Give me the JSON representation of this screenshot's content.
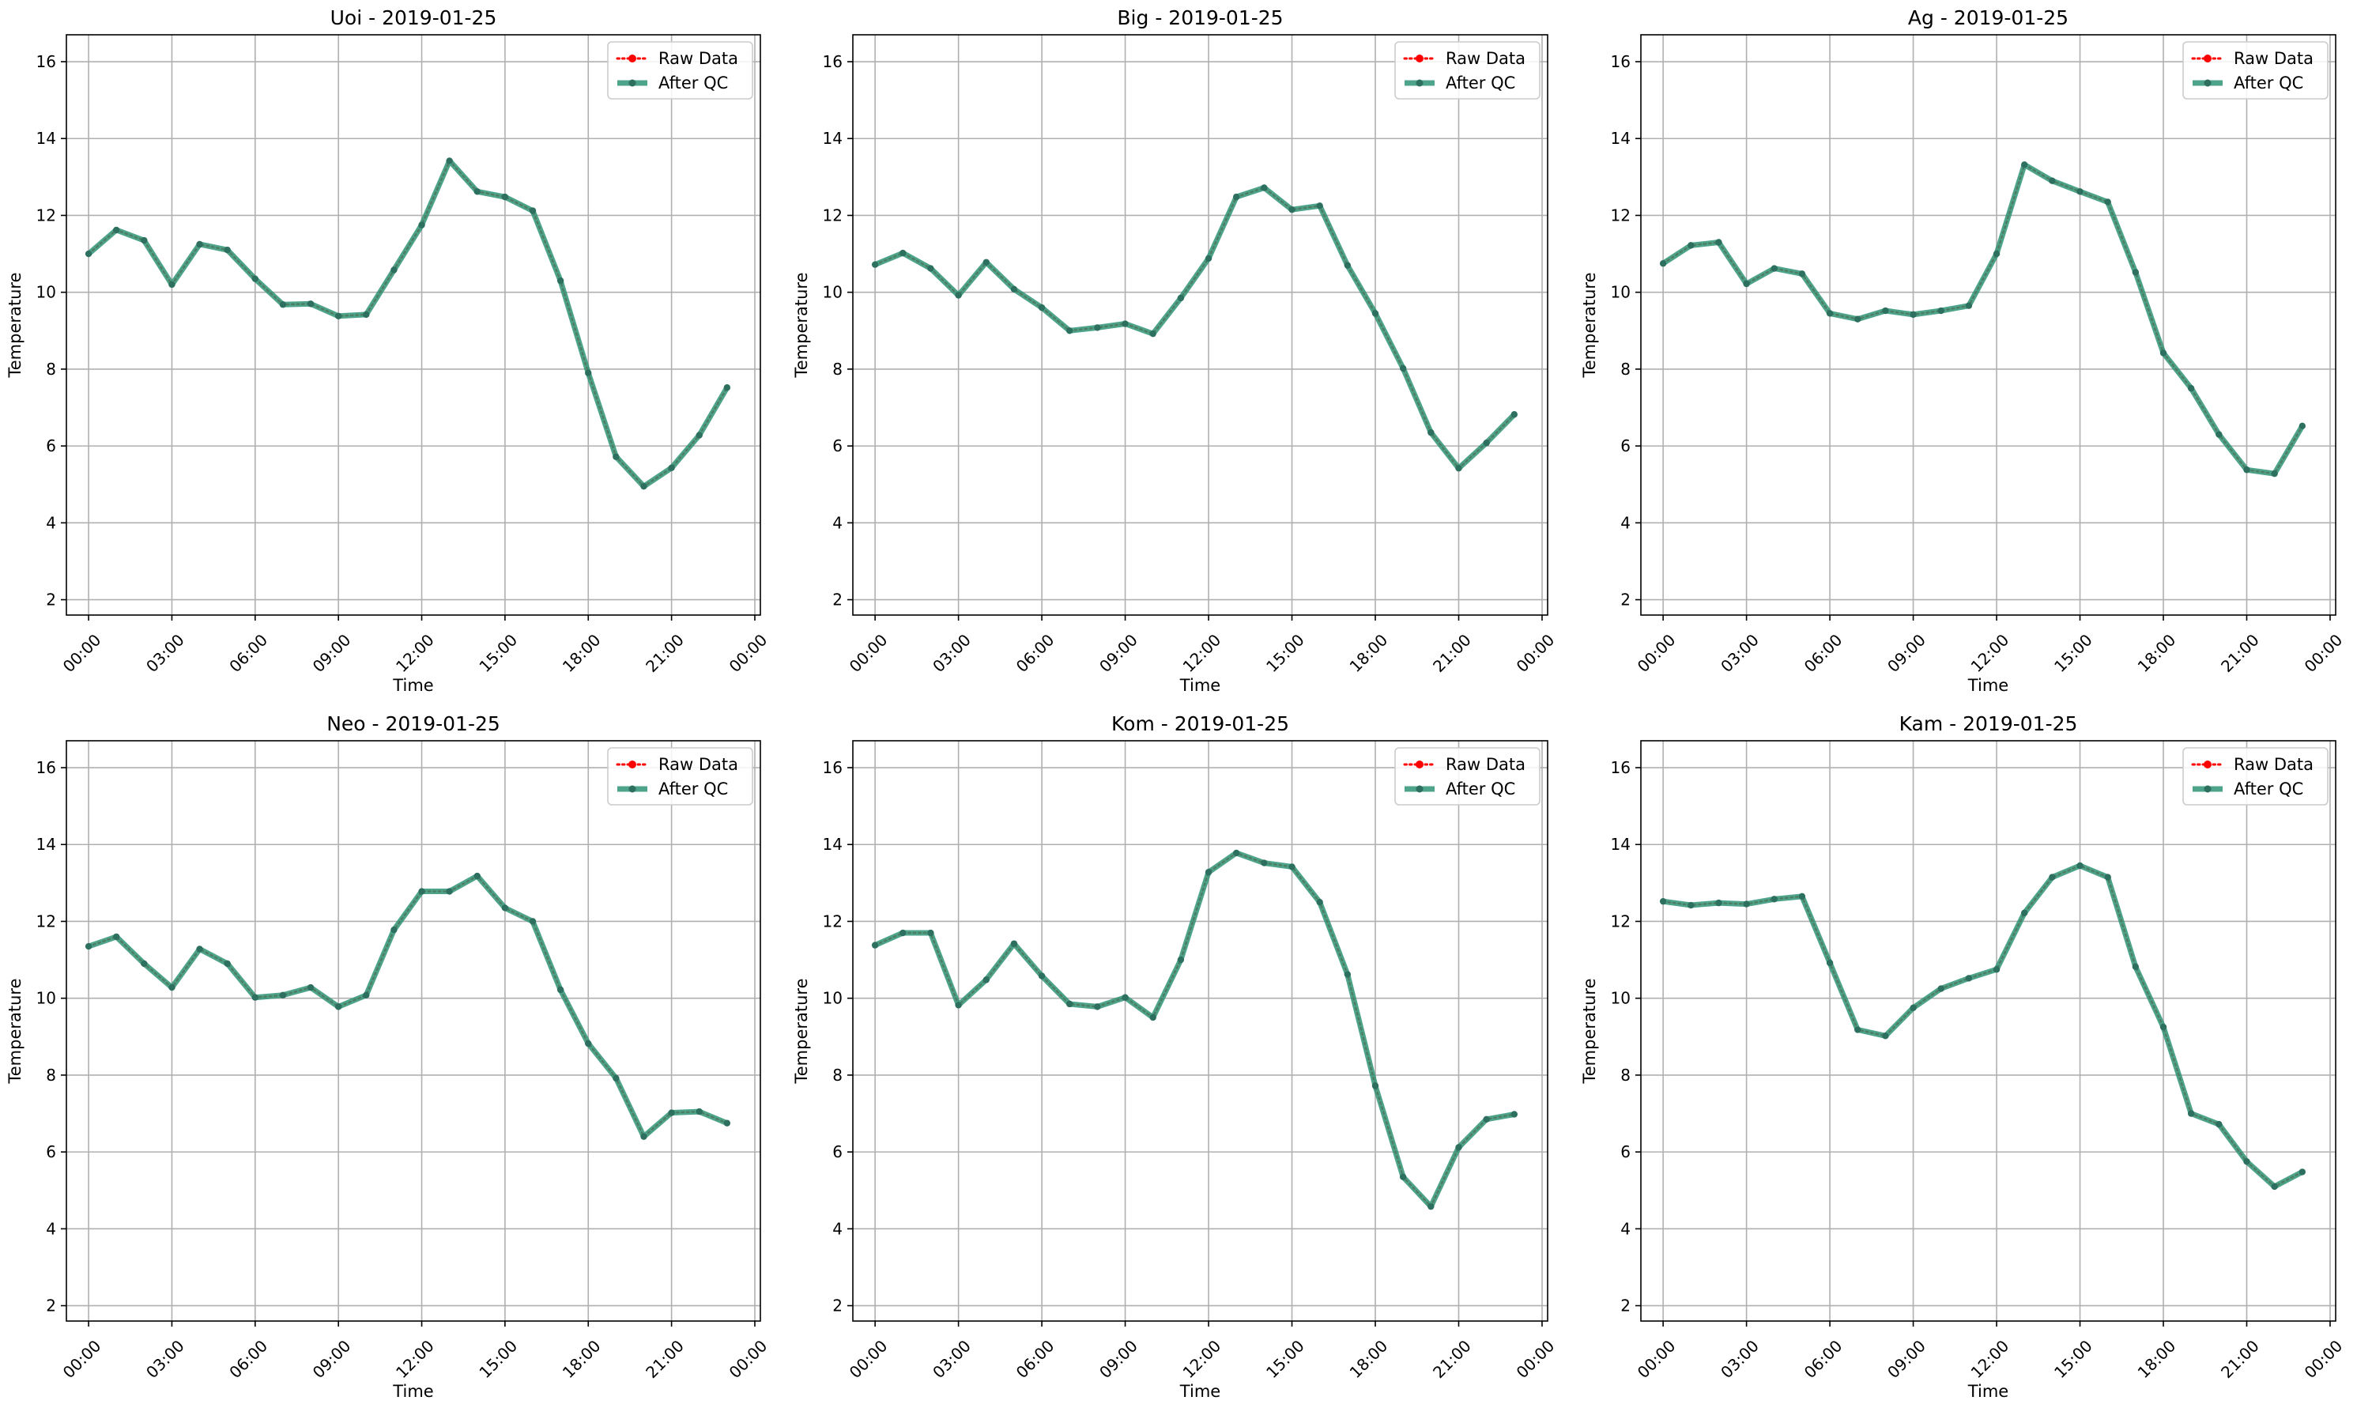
{
  "colors": {
    "raw": "#ff0000",
    "qc": "#2e9476",
    "qc_marker": "#2d7060",
    "grid": "#b0b0b0",
    "axes": "#000000",
    "legend_border": "#cccccc"
  },
  "legend": {
    "raw_label": "Raw Data",
    "qc_label": "After QC"
  },
  "chart_data": [
    {
      "type": "line",
      "title": "Uoi - 2019-01-25",
      "xlabel": "Time",
      "ylabel": "Temperature",
      "x_tick_labels": [
        "00:00",
        "03:00",
        "06:00",
        "09:00",
        "12:00",
        "15:00",
        "18:00",
        "21:00",
        "00:00"
      ],
      "y_ticks": [
        2,
        4,
        6,
        8,
        10,
        12,
        14,
        16
      ],
      "ylim": [
        1.6,
        16.7
      ],
      "xlim_hours": [
        -0.8,
        24.2
      ],
      "grid": true,
      "legend_position": "top-right",
      "x_hours": [
        0,
        1,
        2,
        3,
        4,
        5,
        6,
        7,
        8,
        9,
        10,
        11,
        12,
        13,
        14,
        15,
        16,
        17,
        18,
        19,
        20,
        21,
        22,
        23
      ],
      "series": [
        {
          "name": "Raw Data",
          "values": [
            11.0,
            11.62,
            11.35,
            10.2,
            11.25,
            11.1,
            10.35,
            9.68,
            9.7,
            9.38,
            9.42,
            10.58,
            11.75,
            13.42,
            12.62,
            12.48,
            12.12,
            10.3,
            7.9,
            5.72,
            4.95,
            5.43,
            6.28,
            7.52
          ]
        },
        {
          "name": "After QC",
          "values": [
            11.0,
            11.62,
            11.35,
            10.2,
            11.25,
            11.1,
            10.35,
            9.68,
            9.7,
            9.38,
            9.42,
            10.58,
            11.75,
            13.42,
            12.62,
            12.48,
            12.12,
            10.3,
            7.9,
            5.72,
            4.95,
            5.43,
            6.28,
            7.52
          ]
        }
      ]
    },
    {
      "type": "line",
      "title": "Big - 2019-01-25",
      "xlabel": "Time",
      "ylabel": "Temperature",
      "x_tick_labels": [
        "00:00",
        "03:00",
        "06:00",
        "09:00",
        "12:00",
        "15:00",
        "18:00",
        "21:00",
        "00:00"
      ],
      "y_ticks": [
        2,
        4,
        6,
        8,
        10,
        12,
        14,
        16
      ],
      "ylim": [
        1.6,
        16.7
      ],
      "xlim_hours": [
        -0.8,
        24.2
      ],
      "grid": true,
      "legend_position": "top-right",
      "x_hours": [
        0,
        1,
        2,
        3,
        4,
        5,
        6,
        7,
        8,
        9,
        10,
        11,
        12,
        13,
        14,
        15,
        16,
        17,
        18,
        19,
        20,
        21,
        22,
        23
      ],
      "series": [
        {
          "name": "Raw Data",
          "values": [
            10.72,
            11.02,
            10.62,
            9.92,
            10.78,
            10.08,
            9.6,
            9.0,
            9.08,
            9.18,
            8.92,
            9.85,
            10.88,
            12.48,
            12.72,
            12.15,
            12.25,
            10.7,
            9.45,
            8.02,
            6.35,
            5.42,
            6.08,
            6.82
          ]
        },
        {
          "name": "After QC",
          "values": [
            10.72,
            11.02,
            10.62,
            9.92,
            10.78,
            10.08,
            9.6,
            9.0,
            9.08,
            9.18,
            8.92,
            9.85,
            10.88,
            12.48,
            12.72,
            12.15,
            12.25,
            10.7,
            9.45,
            8.02,
            6.35,
            5.42,
            6.08,
            6.82
          ]
        }
      ]
    },
    {
      "type": "line",
      "title": "Ag - 2019-01-25",
      "xlabel": "Time",
      "ylabel": "Temperature",
      "x_tick_labels": [
        "00:00",
        "03:00",
        "06:00",
        "09:00",
        "12:00",
        "15:00",
        "18:00",
        "21:00",
        "00:00"
      ],
      "y_ticks": [
        2,
        4,
        6,
        8,
        10,
        12,
        14,
        16
      ],
      "ylim": [
        1.6,
        16.7
      ],
      "xlim_hours": [
        -0.8,
        24.2
      ],
      "grid": true,
      "legend_position": "top-right",
      "x_hours": [
        0,
        1,
        2,
        3,
        4,
        5,
        6,
        7,
        8,
        9,
        10,
        11,
        12,
        13,
        14,
        15,
        16,
        17,
        18,
        19,
        20,
        21,
        22,
        23
      ],
      "series": [
        {
          "name": "Raw Data",
          "values": [
            10.75,
            11.22,
            11.3,
            10.22,
            10.62,
            10.48,
            9.45,
            9.3,
            9.52,
            9.42,
            9.52,
            9.65,
            11.0,
            13.32,
            12.9,
            12.62,
            12.35,
            10.52,
            8.42,
            7.5,
            6.3,
            5.38,
            5.28,
            6.52
          ]
        },
        {
          "name": "After QC",
          "values": [
            10.75,
            11.22,
            11.3,
            10.22,
            10.62,
            10.48,
            9.45,
            9.3,
            9.52,
            9.42,
            9.52,
            9.65,
            11.0,
            13.32,
            12.9,
            12.62,
            12.35,
            10.52,
            8.42,
            7.5,
            6.3,
            5.38,
            5.28,
            6.52
          ]
        }
      ]
    },
    {
      "type": "line",
      "title": "Neo - 2019-01-25",
      "xlabel": "Time",
      "ylabel": "Temperature",
      "x_tick_labels": [
        "00:00",
        "03:00",
        "06:00",
        "09:00",
        "12:00",
        "15:00",
        "18:00",
        "21:00",
        "00:00"
      ],
      "y_ticks": [
        2,
        4,
        6,
        8,
        10,
        12,
        14,
        16
      ],
      "ylim": [
        1.6,
        16.7
      ],
      "xlim_hours": [
        -0.8,
        24.2
      ],
      "grid": true,
      "legend_position": "top-right",
      "x_hours": [
        0,
        1,
        2,
        3,
        4,
        5,
        6,
        7,
        8,
        9,
        10,
        11,
        12,
        13,
        14,
        15,
        16,
        17,
        18,
        19,
        20,
        21,
        22,
        23
      ],
      "series": [
        {
          "name": "Raw Data",
          "values": [
            11.35,
            11.6,
            10.9,
            10.28,
            11.28,
            10.9,
            10.02,
            10.08,
            10.28,
            9.78,
            10.08,
            11.78,
            12.78,
            12.78,
            13.18,
            12.35,
            12.0,
            10.22,
            8.82,
            7.92,
            6.4,
            7.02,
            7.05,
            6.75
          ]
        },
        {
          "name": "After QC",
          "values": [
            11.35,
            11.6,
            10.9,
            10.28,
            11.28,
            10.9,
            10.02,
            10.08,
            10.28,
            9.78,
            10.08,
            11.78,
            12.78,
            12.78,
            13.18,
            12.35,
            12.0,
            10.22,
            8.82,
            7.92,
            6.4,
            7.02,
            7.05,
            6.75
          ]
        }
      ]
    },
    {
      "type": "line",
      "title": "Kom - 2019-01-25",
      "xlabel": "Time",
      "ylabel": "Temperature",
      "x_tick_labels": [
        "00:00",
        "03:00",
        "06:00",
        "09:00",
        "12:00",
        "15:00",
        "18:00",
        "21:00",
        "00:00"
      ],
      "y_ticks": [
        2,
        4,
        6,
        8,
        10,
        12,
        14,
        16
      ],
      "ylim": [
        1.6,
        16.7
      ],
      "xlim_hours": [
        -0.8,
        24.2
      ],
      "grid": true,
      "legend_position": "top-right",
      "x_hours": [
        0,
        1,
        2,
        3,
        4,
        5,
        6,
        7,
        8,
        9,
        10,
        11,
        12,
        13,
        14,
        15,
        16,
        17,
        18,
        19,
        20,
        21,
        22,
        23
      ],
      "series": [
        {
          "name": "Raw Data",
          "values": [
            11.38,
            11.7,
            11.7,
            9.82,
            10.48,
            11.42,
            10.58,
            9.85,
            9.78,
            10.02,
            9.5,
            11.0,
            13.28,
            13.78,
            13.52,
            13.42,
            12.5,
            10.62,
            7.72,
            5.35,
            4.58,
            6.12,
            6.85,
            6.98
          ]
        },
        {
          "name": "After QC",
          "values": [
            11.38,
            11.7,
            11.7,
            9.82,
            10.48,
            11.42,
            10.58,
            9.85,
            9.78,
            10.02,
            9.5,
            11.0,
            13.28,
            13.78,
            13.52,
            13.42,
            12.5,
            10.62,
            7.72,
            5.35,
            4.58,
            6.12,
            6.85,
            6.98
          ]
        }
      ]
    },
    {
      "type": "line",
      "title": "Kam - 2019-01-25",
      "xlabel": "Time",
      "ylabel": "Temperature",
      "x_tick_labels": [
        "00:00",
        "03:00",
        "06:00",
        "09:00",
        "12:00",
        "15:00",
        "18:00",
        "21:00",
        "00:00"
      ],
      "y_ticks": [
        2,
        4,
        6,
        8,
        10,
        12,
        14,
        16
      ],
      "ylim": [
        1.6,
        16.7
      ],
      "xlim_hours": [
        -0.8,
        24.2
      ],
      "grid": true,
      "legend_position": "top-right",
      "x_hours": [
        0,
        1,
        2,
        3,
        4,
        5,
        6,
        7,
        8,
        9,
        10,
        11,
        12,
        13,
        14,
        15,
        16,
        17,
        18,
        19,
        20,
        21,
        22,
        23
      ],
      "series": [
        {
          "name": "Raw Data",
          "values": [
            12.52,
            12.42,
            12.48,
            12.45,
            12.58,
            12.65,
            10.92,
            9.18,
            9.02,
            9.75,
            10.25,
            10.52,
            10.75,
            12.22,
            13.15,
            13.45,
            13.15,
            10.82,
            9.25,
            7.0,
            6.72,
            5.75,
            5.1,
            5.48
          ]
        },
        {
          "name": "After QC",
          "values": [
            12.52,
            12.42,
            12.48,
            12.45,
            12.58,
            12.65,
            10.92,
            9.18,
            9.02,
            9.75,
            10.25,
            10.52,
            10.75,
            12.22,
            13.15,
            13.45,
            13.15,
            10.82,
            9.25,
            7.0,
            6.72,
            5.75,
            5.1,
            5.48
          ]
        }
      ]
    }
  ]
}
